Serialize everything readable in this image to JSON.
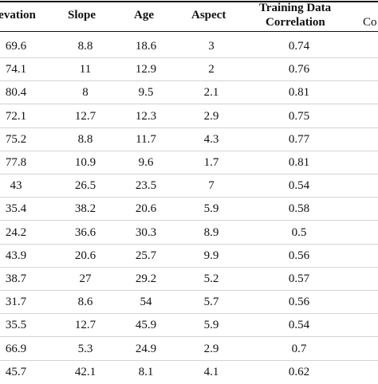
{
  "table": {
    "headers": {
      "elevation": "levation",
      "slope": "Slope",
      "age": "Age",
      "aspect": "Aspect",
      "training_line1": "Training Data",
      "training_line2": "Correlation",
      "cut_col": "Co"
    },
    "rows": [
      {
        "elevation": "69.6",
        "slope": "8.8",
        "age": "18.6",
        "aspect": "3",
        "training": "0.74"
      },
      {
        "elevation": "74.1",
        "slope": "11",
        "age": "12.9",
        "aspect": "2",
        "training": "0.76"
      },
      {
        "elevation": "80.4",
        "slope": "8",
        "age": "9.5",
        "aspect": "2.1",
        "training": "0.81"
      },
      {
        "elevation": "72.1",
        "slope": "12.7",
        "age": "12.3",
        "aspect": "2.9",
        "training": "0.75"
      },
      {
        "elevation": "75.2",
        "slope": "8.8",
        "age": "11.7",
        "aspect": "4.3",
        "training": "0.77"
      },
      {
        "elevation": "77.8",
        "slope": "10.9",
        "age": "9.6",
        "aspect": "1.7",
        "training": "0.81"
      },
      {
        "elevation": "43",
        "slope": "26.5",
        "age": "23.5",
        "aspect": "7",
        "training": "0.54"
      },
      {
        "elevation": "35.4",
        "slope": "38.2",
        "age": "20.6",
        "aspect": "5.9",
        "training": "0.58"
      },
      {
        "elevation": "24.2",
        "slope": "36.6",
        "age": "30.3",
        "aspect": "8.9",
        "training": "0.5"
      },
      {
        "elevation": "43.9",
        "slope": "20.6",
        "age": "25.7",
        "aspect": "9.9",
        "training": "0.56"
      },
      {
        "elevation": "38.7",
        "slope": "27",
        "age": "29.2",
        "aspect": "5.2",
        "training": "0.57"
      },
      {
        "elevation": "31.7",
        "slope": "8.6",
        "age": "54",
        "aspect": "5.7",
        "training": "0.56"
      },
      {
        "elevation": "35.5",
        "slope": "12.7",
        "age": "45.9",
        "aspect": "5.9",
        "training": "0.54"
      },
      {
        "elevation": "66.9",
        "slope": "5.3",
        "age": "24.9",
        "aspect": "2.9",
        "training": "0.7"
      },
      {
        "elevation": "45.7",
        "slope": "42.1",
        "age": "8.1",
        "aspect": "4.1",
        "training": "0.62"
      }
    ]
  }
}
